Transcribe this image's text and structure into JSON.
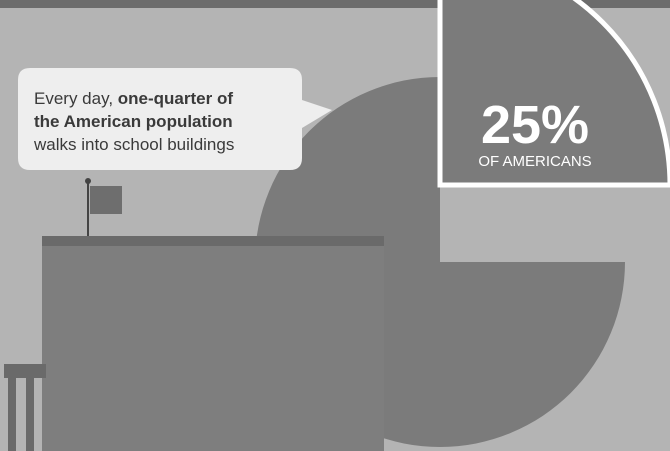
{
  "callout": {
    "lines": [
      [
        {
          "text": "Every day, ",
          "bold": false
        },
        {
          "text": "one-quarter of",
          "bold": true
        }
      ],
      [
        {
          "text": "the American population",
          "bold": true
        }
      ],
      [
        {
          "text": "walks into school buildings",
          "bold": false
        }
      ]
    ]
  },
  "stat": {
    "value": "25%",
    "label": "OF AMERICANS"
  }
}
